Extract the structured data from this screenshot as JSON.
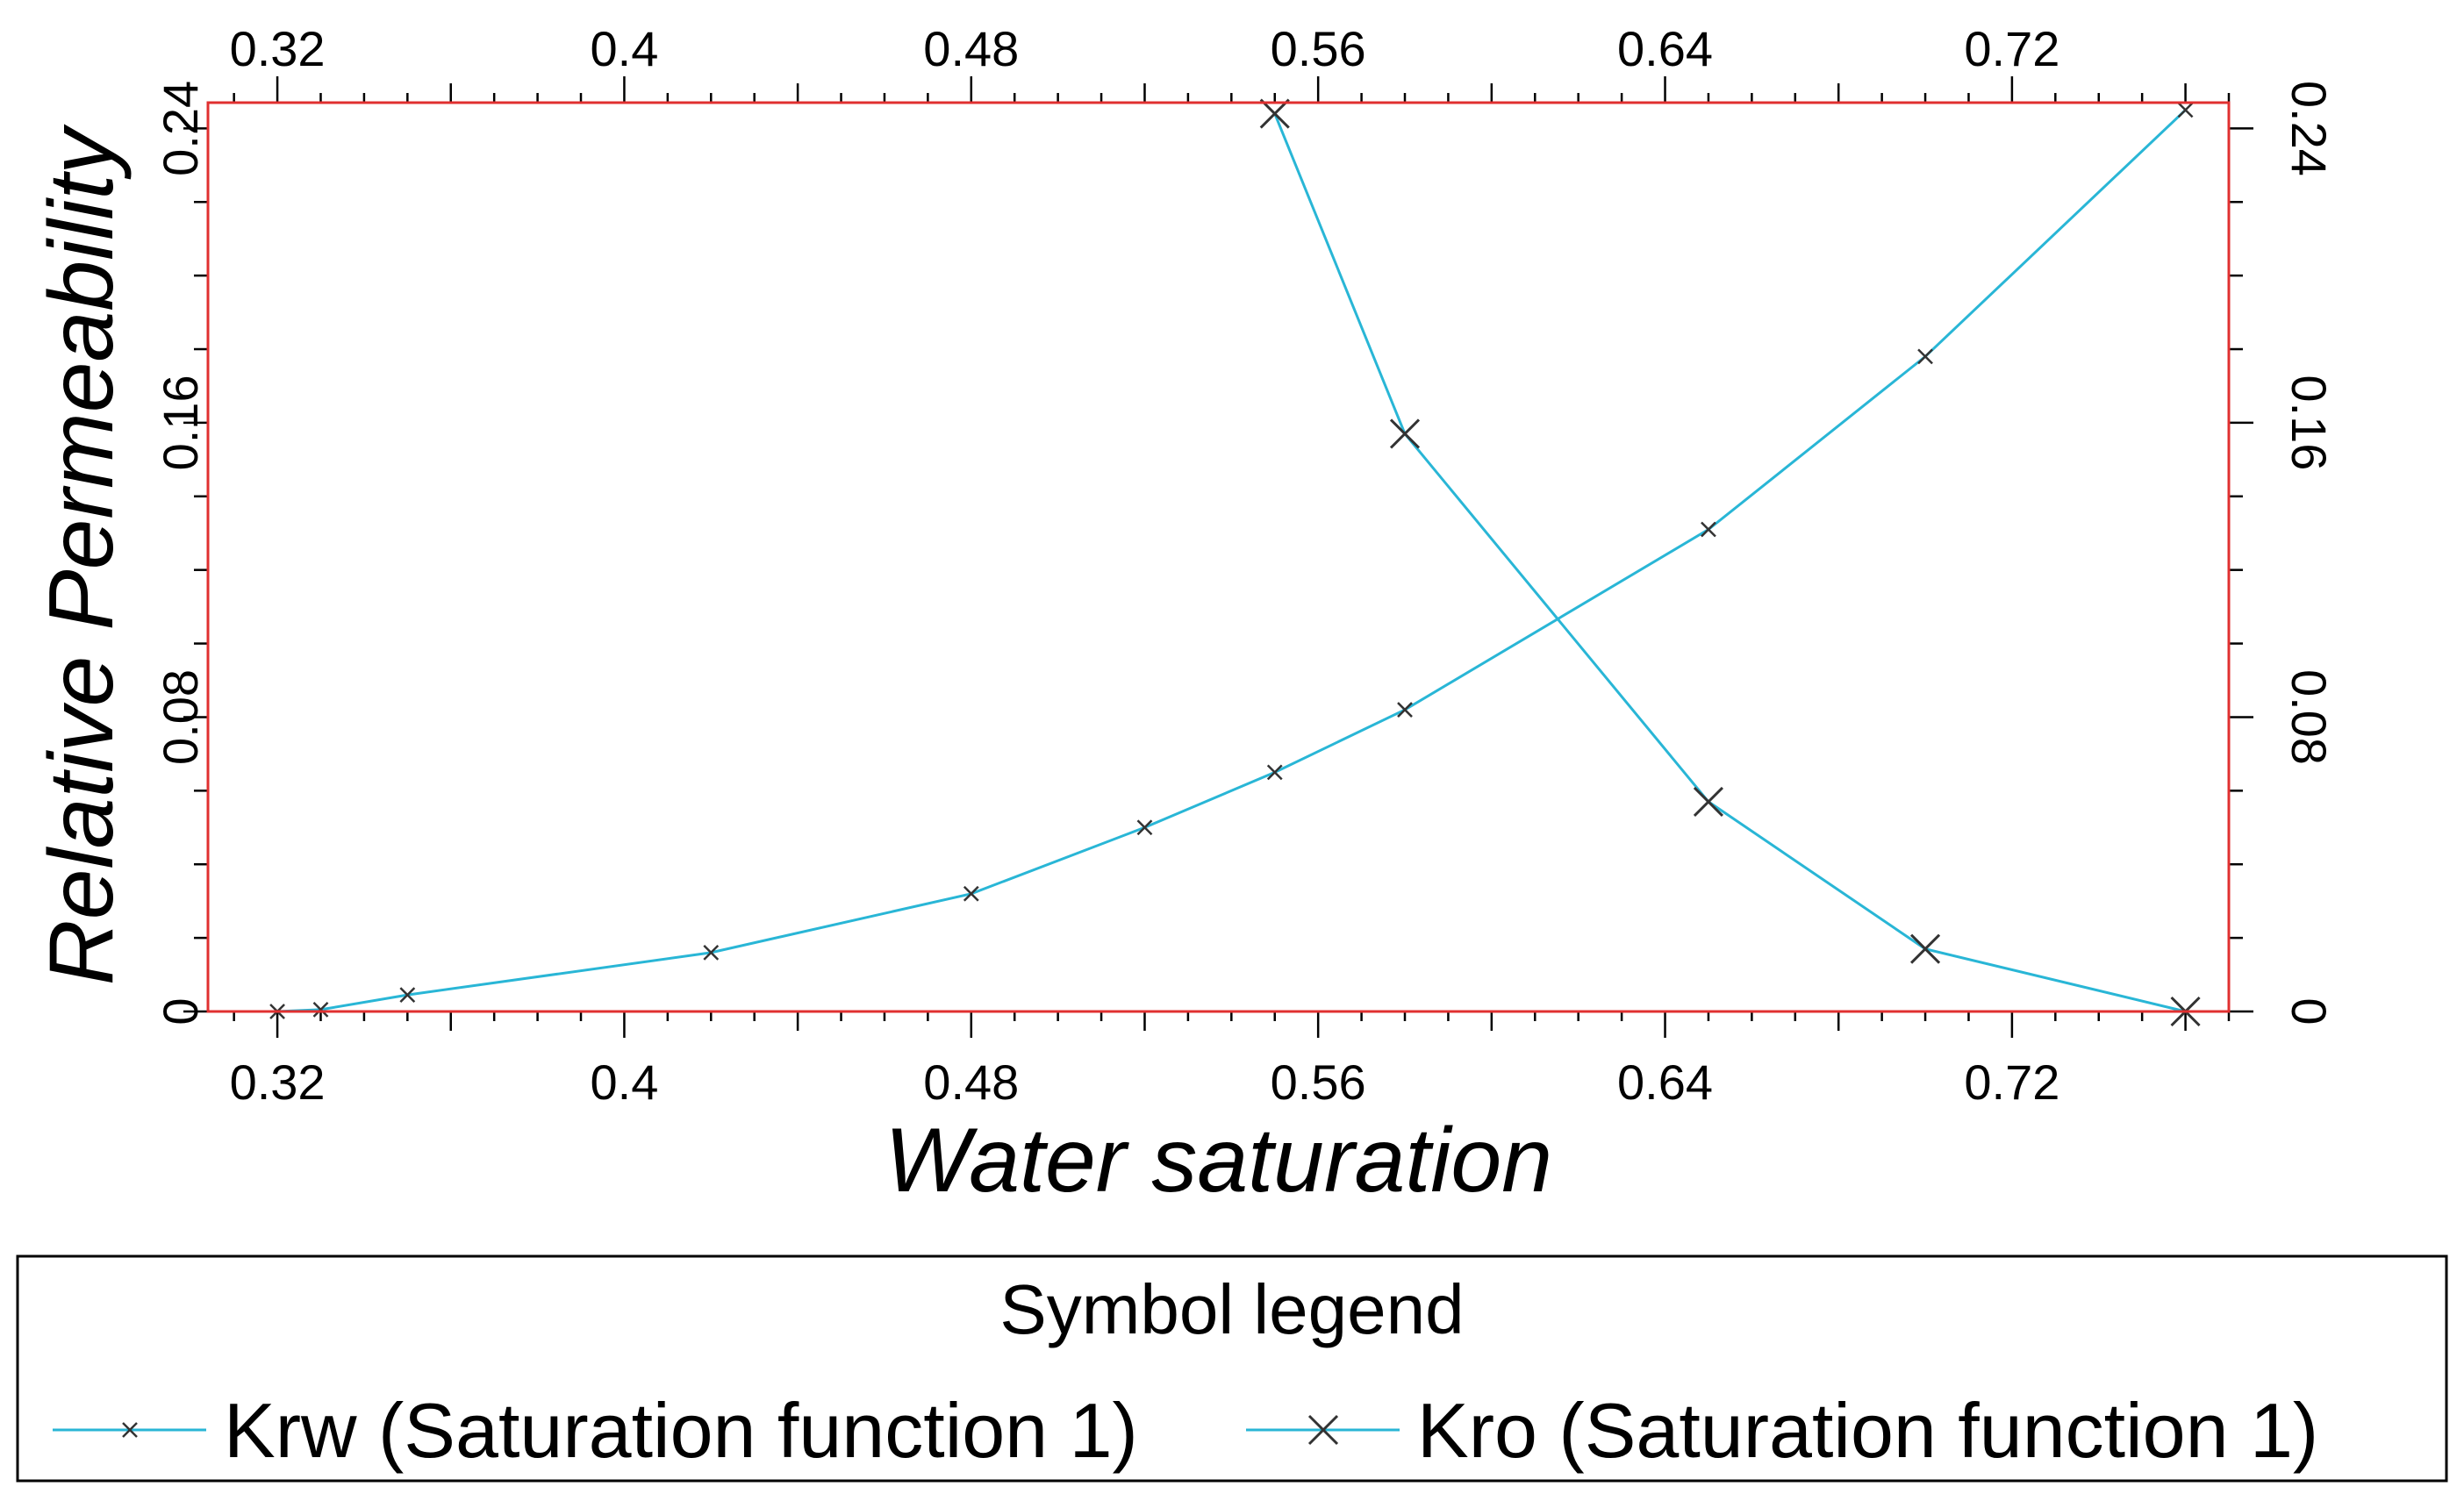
{
  "chart_data": {
    "type": "line",
    "xlabel": "Water saturation",
    "ylabel": "Relative Permeability",
    "xlim": [
      0.304,
      0.77
    ],
    "ylim": [
      0,
      0.247
    ],
    "x_ticks": [
      0.32,
      0.4,
      0.48,
      0.56,
      0.64,
      0.72
    ],
    "x_tick_labels": [
      "0.32",
      "0.4",
      "0.48",
      "0.56",
      "0.64",
      "0.72"
    ],
    "y_ticks": [
      0,
      0.08,
      0.16,
      0.24
    ],
    "y_tick_labels": [
      "0",
      "0.08",
      "0.16",
      "0.24"
    ],
    "grid": false,
    "frame_color": "#e03030",
    "line_color": "#29b6d6",
    "series": [
      {
        "name": "Krw (Saturation function 1)",
        "marker": "small-x",
        "x": [
          0.32,
          0.33,
          0.35,
          0.42,
          0.48,
          0.52,
          0.55,
          0.58,
          0.65,
          0.7,
          0.76
        ],
        "y": [
          0,
          0.0005,
          0.0045,
          0.016,
          0.032,
          0.05,
          0.065,
          0.082,
          0.131,
          0.178,
          0.245
        ]
      },
      {
        "name": "Kro (Saturation function 1)",
        "marker": "large-x",
        "x": [
          0.55,
          0.58,
          0.65,
          0.7,
          0.76
        ],
        "y": [
          0.244,
          0.157,
          0.057,
          0.017,
          0
        ]
      }
    ],
    "legend": {
      "title": "Symbol legend",
      "placement": "bottom"
    }
  }
}
